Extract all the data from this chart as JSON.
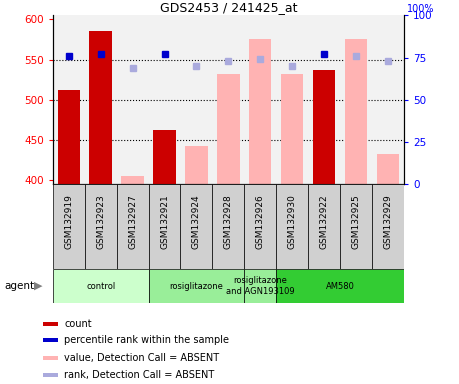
{
  "title": "GDS2453 / 241425_at",
  "samples": [
    "GSM132919",
    "GSM132923",
    "GSM132927",
    "GSM132921",
    "GSM132924",
    "GSM132928",
    "GSM132926",
    "GSM132930",
    "GSM132922",
    "GSM132925",
    "GSM132929"
  ],
  "bar_values": [
    512,
    585,
    null,
    462,
    null,
    null,
    null,
    null,
    537,
    null,
    null
  ],
  "bar_color_present": "#cc0000",
  "bar_color_absent": "#ffb3b3",
  "absent_bar_values": [
    null,
    null,
    405,
    null,
    443,
    532,
    575,
    532,
    null,
    575,
    433
  ],
  "percentile_present": [
    76,
    77,
    null,
    77,
    null,
    null,
    null,
    null,
    77,
    null,
    null
  ],
  "percentile_absent": [
    null,
    null,
    69,
    null,
    70,
    73,
    74,
    70,
    null,
    76,
    73
  ],
  "ylim_left": [
    395,
    605
  ],
  "yticks_left": [
    400,
    450,
    500,
    550,
    600
  ],
  "ylim_right": [
    0,
    100
  ],
  "yticks_right": [
    0,
    25,
    50,
    75,
    100
  ],
  "hlines": [
    450,
    500,
    550
  ],
  "groups": [
    {
      "label": "control",
      "start": 0,
      "end": 3,
      "color": "#ccffcc"
    },
    {
      "label": "rosiglitazone",
      "start": 3,
      "end": 6,
      "color": "#99ee99"
    },
    {
      "label": "rosiglitazone\nand AGN193109",
      "start": 6,
      "end": 7,
      "color": "#99ee99"
    },
    {
      "label": "AM580",
      "start": 7,
      "end": 11,
      "color": "#33cc33"
    }
  ],
  "legend_colors": [
    "#cc0000",
    "#0000cc",
    "#ffb3b3",
    "#aaaadd"
  ],
  "legend_labels": [
    "count",
    "percentile rank within the sample",
    "value, Detection Call = ABSENT",
    "rank, Detection Call = ABSENT"
  ],
  "plot_bg": "#f2f2f2",
  "tick_cell_color": "#d0d0d0"
}
